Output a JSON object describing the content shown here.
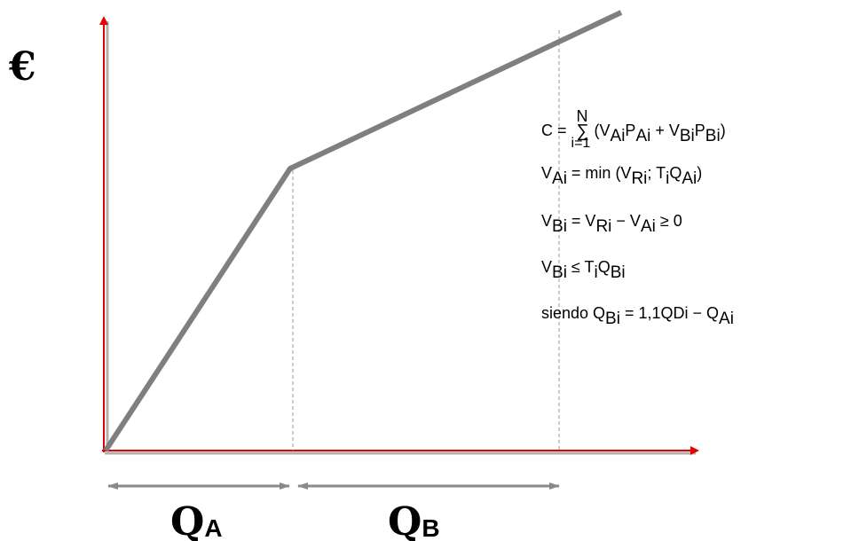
{
  "diagram": {
    "y_axis_symbol": "€",
    "segment_a_label": {
      "main": "Q",
      "sub": "A"
    },
    "segment_b_label": {
      "main": "Q",
      "sub": "B"
    },
    "colors": {
      "axis": "#e00000",
      "curve": "#808080",
      "guides": "#9a9a9a",
      "text": "#000000"
    }
  },
  "formulas": {
    "line1": {
      "lhs": "C = ",
      "sum_top": "N",
      "sum_symbol": "∑",
      "sum_bottom": "i=1",
      "body_open": "(V",
      "s1": "Ai",
      "p1": "P",
      "s2": "Ai",
      "plus": " + V",
      "s3": "Bi",
      "p2": "P",
      "s4": "Bi",
      "close": ")"
    },
    "line2": {
      "v": "V",
      "s1": "Ai",
      "mid": " = min (V",
      "s2": "Ri",
      "semi": "; T",
      "s3": "i",
      "q": "Q",
      "s4": "Ai",
      "close": ")"
    },
    "line3": {
      "v": "V",
      "s1": "Bi",
      "eq": " = V",
      "s2": "Ri",
      "minus": " − V",
      "s3": "Ai",
      "tail": " ≥ 0"
    },
    "line4": {
      "v": "V",
      "s1": "Bi",
      "le": " ≤ T",
      "s2": "i",
      "q": "Q",
      "s3": "Bi"
    },
    "line5": {
      "pre": "siendo  Q",
      "s1": "Bi",
      "eq": " = 1,1QDi − Q",
      "s2": "Ai"
    }
  }
}
